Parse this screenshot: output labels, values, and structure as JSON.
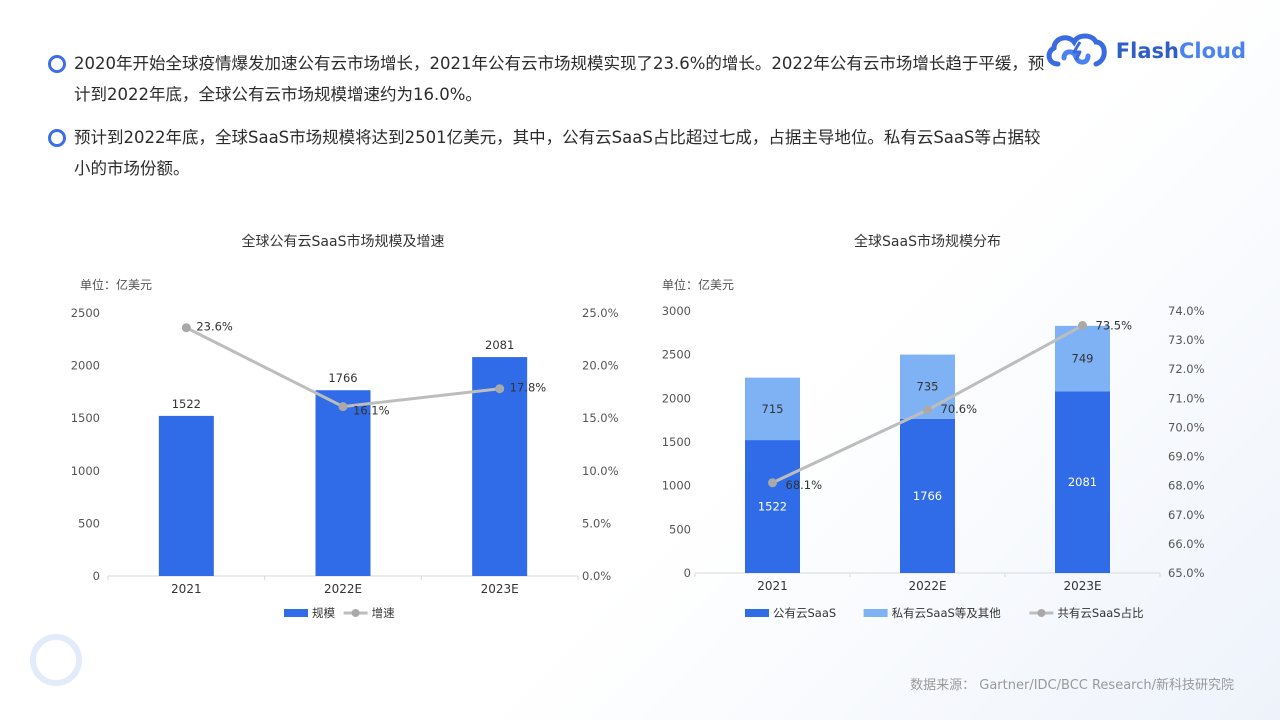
{
  "bullets": [
    "2020年开始全球疫情爆发加速公有云市场增长，2021年公有云市场规模实现了23.6%的增长。2022年公有云市场增长趋于平缓，预计到2022年底，全球公有云市场规模增速约为16.0%。",
    "预计到2022年底，全球SaaS市场规模将达到2501亿美元，其中，公有云SaaS占比超过七成，占据主导地位。私有云SaaS等占据较小的市场份额。"
  ],
  "logo": {
    "part1": "Flash",
    "part2": "Cloud",
    "icon": "cloud-link-icon"
  },
  "source": "数据来源： Gartner/IDC/BCC Research/新科技研究院",
  "colors": {
    "primary": "#306ce8",
    "light": "#7fb1f5",
    "line": "#bdbdbd",
    "accent": "#3d6ee8"
  },
  "chart_data": [
    {
      "type": "bar",
      "title": "全球公有云SaaS市场规模及增速",
      "unit": "单位：亿美元",
      "categories": [
        "2021",
        "2022E",
        "2023E"
      ],
      "series": [
        {
          "name": "规模",
          "type": "bar",
          "values": [
            1522,
            1766,
            2081
          ]
        },
        {
          "name": "增速",
          "type": "line",
          "axis": "right",
          "values": [
            23.6,
            16.1,
            17.8
          ],
          "labels": [
            "23.6%",
            "16.1%",
            "17.8%"
          ]
        }
      ],
      "ylim": [
        0,
        2500
      ],
      "yticks": [
        "0",
        "500",
        "1000",
        "1500",
        "2000",
        "2500"
      ],
      "y2lim": [
        0,
        25
      ],
      "y2ticks": [
        "0.0%",
        "5.0%",
        "10.0%",
        "15.0%",
        "20.0%",
        "25.0%"
      ],
      "legend": "bottom"
    },
    {
      "type": "bar",
      "stacked": true,
      "title": "全球SaaS市场规模分布",
      "unit": "单位：亿美元",
      "categories": [
        "2021",
        "2022E",
        "2023E"
      ],
      "series": [
        {
          "name": "公有云SaaS",
          "type": "bar",
          "values": [
            1522,
            1766,
            2081
          ]
        },
        {
          "name": "私有云SaaS等及其他",
          "type": "bar",
          "values": [
            715,
            735,
            749
          ]
        },
        {
          "name": "共有云SaaS占比",
          "type": "line",
          "axis": "right",
          "values": [
            68.1,
            70.6,
            73.5
          ],
          "labels": [
            "68.1%",
            "70.6%",
            "73.5%"
          ]
        }
      ],
      "ylim": [
        0,
        3000
      ],
      "yticks": [
        "0",
        "500",
        "1000",
        "1500",
        "2000",
        "2500",
        "3000"
      ],
      "y2lim": [
        65,
        74
      ],
      "y2ticks": [
        "65.0%",
        "66.0%",
        "67.0%",
        "68.0%",
        "69.0%",
        "70.0%",
        "71.0%",
        "72.0%",
        "73.0%",
        "74.0%"
      ],
      "legend": "bottom"
    }
  ]
}
